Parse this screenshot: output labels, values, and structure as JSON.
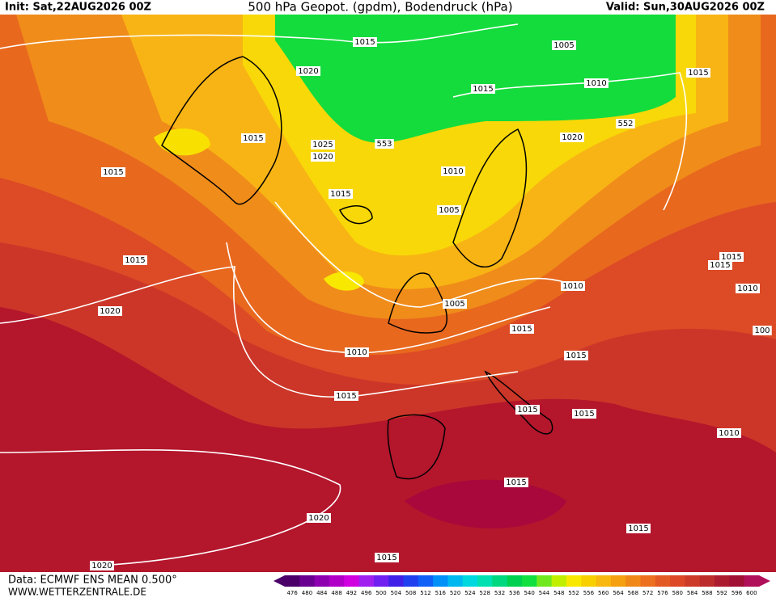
{
  "header": {
    "init": "Init: Sat,22AUG2026 00Z",
    "title": "500 hPa Geopot. (gpdm), Bodendruck (hPa)",
    "valid": "Valid: Sun,30AUG2026 00Z"
  },
  "map": {
    "contour_labels": [
      "1015",
      "1005",
      "1010",
      "1015",
      "1020",
      "1015",
      "552",
      "1020",
      "1015",
      "1025",
      "553",
      "1020",
      "1015",
      "1010",
      "1015",
      "1005",
      "1015",
      "1015",
      "1015",
      "1010",
      "1010",
      "1020",
      "1005",
      "1015",
      "100",
      "1010",
      "1015",
      "1015",
      "1015",
      "1015",
      "1010",
      "1015",
      "1020",
      "1015",
      "1020",
      "1015"
    ]
  },
  "colorbar": {
    "ticks": [
      476,
      480,
      484,
      488,
      492,
      496,
      500,
      504,
      508,
      512,
      516,
      520,
      524,
      528,
      532,
      536,
      540,
      544,
      548,
      552,
      556,
      560,
      564,
      568,
      572,
      576,
      580,
      584,
      588,
      592,
      596,
      600
    ],
    "colors": [
      "#4a0068",
      "#6a0090",
      "#8c00b0",
      "#b000c8",
      "#d000e0",
      "#a020f0",
      "#7020f0",
      "#4020e8",
      "#2040f0",
      "#1060f8",
      "#0090f8",
      "#00b8f0",
      "#00d8e0",
      "#00e0b0",
      "#00d880",
      "#00d050",
      "#10e040",
      "#70e820",
      "#c0f000",
      "#f8e800",
      "#f8d000",
      "#f8b810",
      "#f4a010",
      "#f08818",
      "#ec7020",
      "#e45a24",
      "#dc4828",
      "#cc3a2a",
      "#bc2c2c",
      "#ac1c30",
      "#a01034",
      "#b0105a"
    ]
  },
  "footer": {
    "source": "Data: ECMWF ENS MEAN 0.500°",
    "site": "WWW.WETTERZENTRALE.DE"
  }
}
